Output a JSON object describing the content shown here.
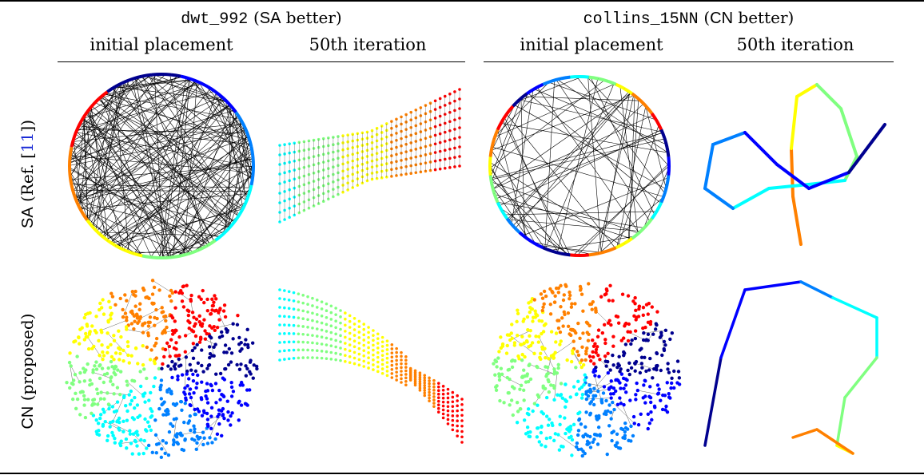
{
  "left_group": {
    "name": "dwt_992",
    "note_open": "(",
    "note_method": "SA",
    "note_close": " better)"
  },
  "right_group": {
    "name": "collins_15NN",
    "note_open": "(",
    "note_method": "CN",
    "note_close": " better)"
  },
  "columns": {
    "initial": "initial placement",
    "iteration": "50th iteration"
  },
  "rows": {
    "sa_method": "SA",
    "sa_ref_open": "(Ref. [",
    "sa_ref_num": "11",
    "sa_ref_close": "])",
    "cn_method": "CN",
    "cn_note": "(proposed)"
  },
  "colors": {
    "ref_link": "#1a2bd6",
    "jet": [
      "#00008f",
      "#0000ff",
      "#0080ff",
      "#00ffff",
      "#80ff80",
      "#ffff00",
      "#ff8000",
      "#ff0000",
      "#800000"
    ]
  }
}
